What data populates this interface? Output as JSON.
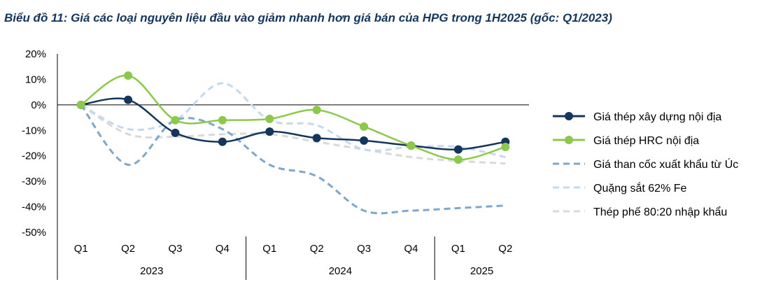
{
  "title": "Biểu đồ 11: Giá các loại nguyên liệu đầu vào giảm nhanh hơn giá bán của HPG trong 1H2025 (gốc: Q1/2023)",
  "chart_data": {
    "type": "line",
    "title": "Biểu đồ 11: Giá các loại nguyên liệu đầu vào giảm nhanh hơn giá bán của HPG trong 1H2025 (gốc: Q1/2023)",
    "categories": [
      "Q1",
      "Q2",
      "Q3",
      "Q4",
      "Q1",
      "Q2",
      "Q3",
      "Q4",
      "Q1",
      "Q2"
    ],
    "groups": [
      {
        "label": "2023",
        "count": 4
      },
      {
        "label": "2024",
        "count": 4
      },
      {
        "label": "2025",
        "count": 2
      }
    ],
    "yticks": [
      "20%",
      "10%",
      "0%",
      "-10%",
      "-20%",
      "-30%",
      "-40%",
      "-50%"
    ],
    "ylim": [
      -50,
      20
    ],
    "y_unit": "%",
    "legend_position": "right",
    "series": [
      {
        "name": "Giá thép xây dựng nội địa",
        "color": "#14365c",
        "style": "solid-marker",
        "values": [
          0,
          2,
          -11,
          -14.5,
          -10.5,
          -13,
          -14,
          -16,
          -17.5,
          -14.5
        ]
      },
      {
        "name": "Giá thép HRC nội địa",
        "color": "#8cc84b",
        "style": "solid-marker",
        "values": [
          0,
          11.5,
          -6,
          -6,
          -5.5,
          -2,
          -8.5,
          -16,
          -21.5,
          -16.5
        ]
      },
      {
        "name": "Giá than cốc xuất khẩu từ Úc",
        "color": "#7fa7cc",
        "style": "dashed",
        "values": [
          0,
          -23.5,
          -6,
          -9.5,
          -23.5,
          -28,
          -41.5,
          -41.5,
          -40.5,
          -39.5
        ]
      },
      {
        "name": "Quặng sắt 62% Fe",
        "color": "#c5d9ee",
        "style": "dashed",
        "values": [
          0,
          -9.5,
          -6,
          8.5,
          -6,
          -8,
          -17.5,
          -16.5,
          -16.5,
          -20.5
        ]
      },
      {
        "name": "Thép phế 80:20 nhập khẩu",
        "color": "#d9d9d9",
        "style": "dashed",
        "values": [
          0,
          -11.5,
          -12.5,
          -11.5,
          -11.5,
          -14.5,
          -17.5,
          -20.5,
          -22,
          -23
        ]
      }
    ]
  }
}
